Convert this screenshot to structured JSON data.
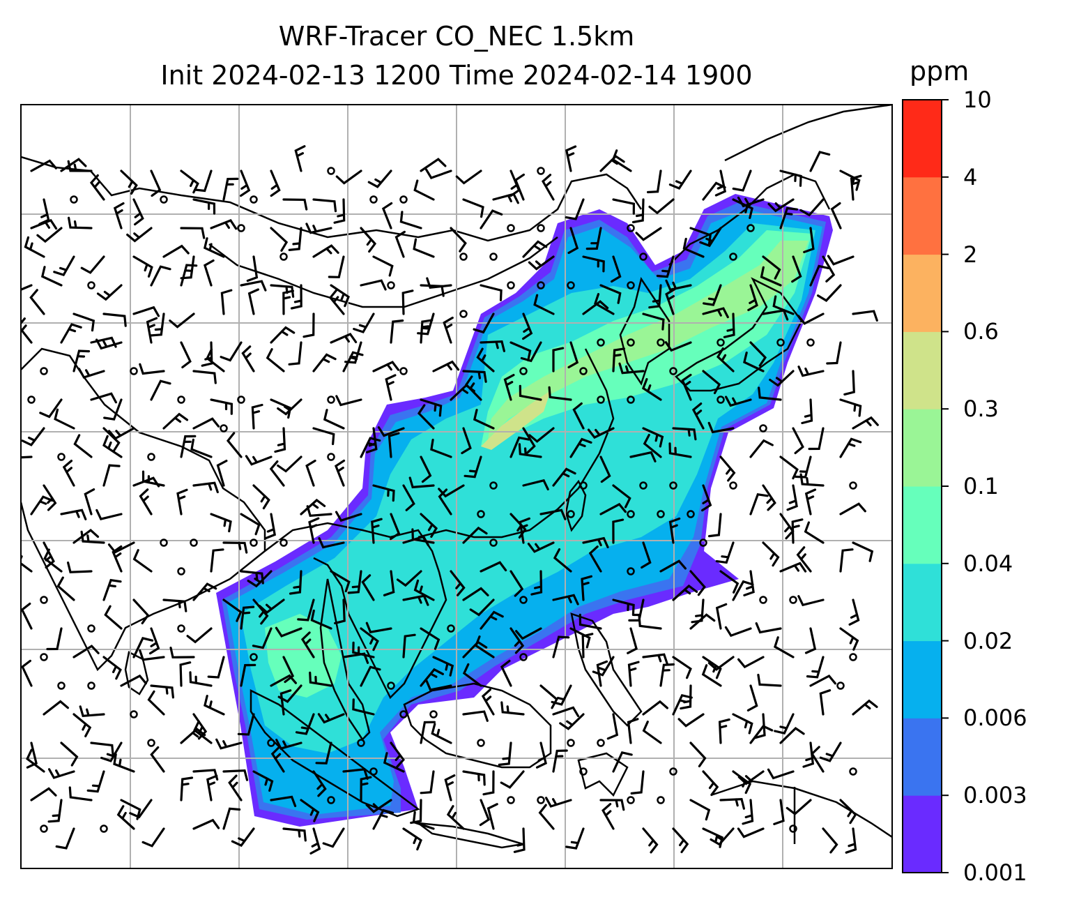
{
  "title": {
    "line1": "WRF-Tracer CO_NEC 1.5km",
    "line2": "Init 2024-02-13 1200 Time 2024-02-14 1900"
  },
  "colorbar": {
    "unit": "ppm",
    "levels": [
      "0.001",
      "0.003",
      "0.006",
      "0.02",
      "0.04",
      "0.1",
      "0.3",
      "0.6",
      "2",
      "4",
      "10"
    ],
    "colors": [
      "#6a2bff",
      "#3a74f0",
      "#06b0ee",
      "#2fe0d8",
      "#66ffbb",
      "#9af596",
      "#cfe38a",
      "#fcb260",
      "#ff7140",
      "#ff2a18"
    ]
  },
  "colors": {
    "coastline": "#000000",
    "gridline": "#b0b0b0",
    "wind_barb": "#000000"
  }
}
